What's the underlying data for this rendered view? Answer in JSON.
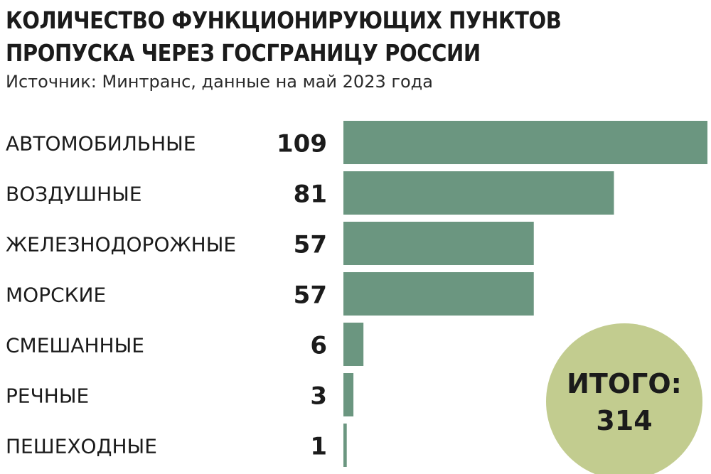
{
  "title_line1": "КОЛИЧЕСТВО ФУНКЦИОНИРУЮЩИХ ПУНКТОВ",
  "title_line2": "ПРОПУСКА ЧЕРЕЗ ГОСГРАНИЦУ РОССИИ",
  "subtitle": "Источник: Минтранс, данные на май 2023 года",
  "colors": {
    "bar": "#6b9680",
    "total_circle": "#c2cc8f"
  },
  "total": {
    "label": "ИТОГО:",
    "value": "314"
  },
  "chart_data": {
    "type": "bar",
    "orientation": "horizontal",
    "title": "КОЛИЧЕСТВО ФУНКЦИОНИРУЮЩИХ ПУНКТОВ ПРОПУСКА ЧЕРЕЗ ГОСГРАНИЦУ РОССИИ",
    "subtitle": "Источник: Минтранс, данные на май 2023 года",
    "categories": [
      "АВТОМОБИЛЬНЫЕ",
      "ВОЗДУШНЫЕ",
      "ЖЕЛЕЗНОДОРОЖНЫЕ",
      "МОРСКИЕ",
      "СМЕШАННЫЕ",
      "РЕЧНЫЕ",
      "ПЕШЕХОДНЫЕ"
    ],
    "values": [
      109,
      81,
      57,
      57,
      6,
      3,
      1
    ],
    "xlabel": "",
    "ylabel": "",
    "xlim": [
      0,
      109
    ],
    "grid": false,
    "data_labels": true
  }
}
